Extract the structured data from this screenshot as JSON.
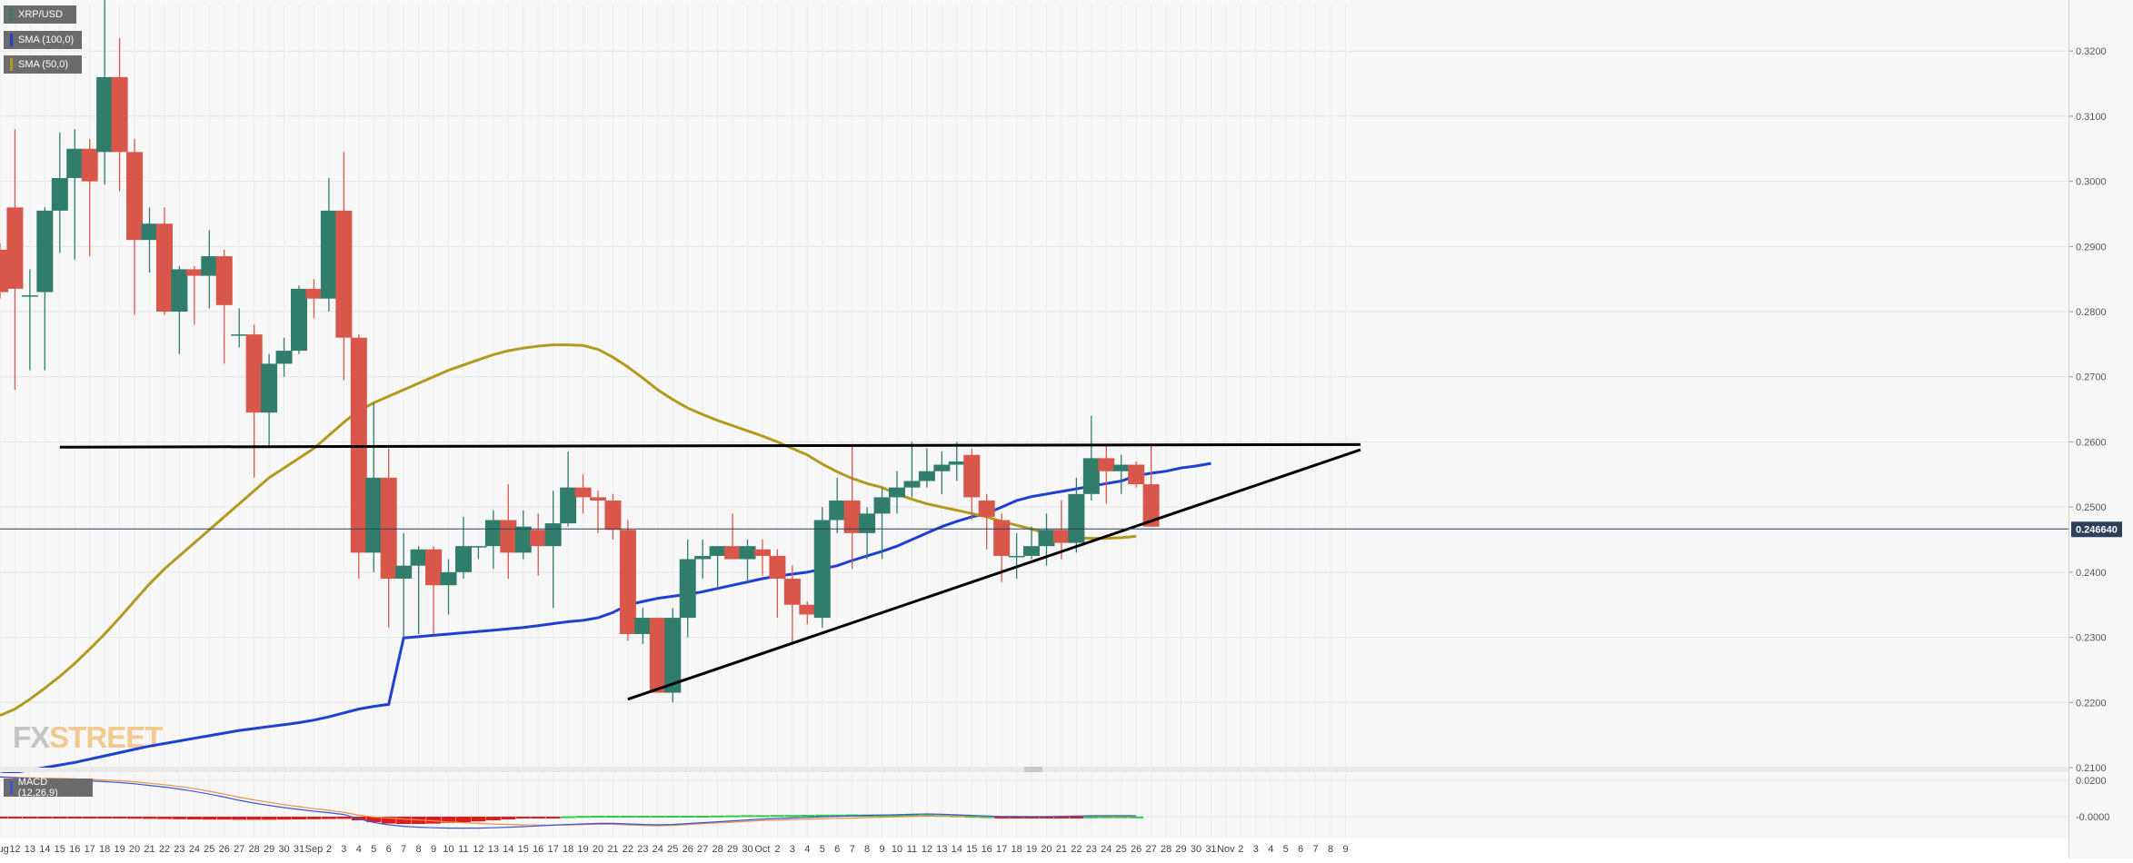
{
  "legend": {
    "symbol": "XRP/USD",
    "sma100": "SMA (100,0)",
    "sma50": "SMA (50,0)",
    "macd": "MACD (12,26,9)"
  },
  "watermark": {
    "fx": "FX",
    "street": "STREET"
  },
  "colors": {
    "bull": "#2f7d6a",
    "bear": "#d9574a",
    "sma100": "#1f3fd1",
    "sma50": "#b19a1e",
    "trendline": "#000000",
    "price_badge": "#2e3f5c",
    "macd_line": "#3a55d6",
    "signal_line": "#e8904a",
    "hist_neg": "#e01b1b",
    "hist_pos": "#2ecc40"
  },
  "chart_data": {
    "type": "candlestick",
    "title": "XRP/USD",
    "current_price": "0.246640",
    "ylim": [
      0.21,
      0.327
    ],
    "y_ticks": [
      "0.3200",
      "0.3100",
      "0.3000",
      "0.2900",
      "0.2800",
      "0.2700",
      "0.2600",
      "0.2500",
      "0.2400",
      "0.2300",
      "0.2200",
      "0.2100"
    ],
    "x_tick_labels": [
      "Aug",
      "12",
      "13",
      "14",
      "15",
      "16",
      "17",
      "18",
      "19",
      "20",
      "21",
      "22",
      "23",
      "24",
      "25",
      "26",
      "27",
      "28",
      "29",
      "30",
      "31",
      "Sep",
      "2",
      "3",
      "4",
      "5",
      "6",
      "7",
      "8",
      "9",
      "10",
      "11",
      "12",
      "13",
      "14",
      "15",
      "16",
      "17",
      "18",
      "19",
      "20",
      "21",
      "22",
      "23",
      "24",
      "25",
      "26",
      "27",
      "28",
      "29",
      "30",
      "Oct",
      "2",
      "3",
      "4",
      "5",
      "6",
      "7",
      "8",
      "9",
      "10",
      "11",
      "12",
      "13",
      "14",
      "15",
      "16",
      "17",
      "18",
      "19",
      "20",
      "21",
      "22",
      "23",
      "24",
      "25",
      "26",
      "27",
      "28",
      "29",
      "30",
      "31",
      "Nov",
      "2",
      "3",
      "4",
      "5",
      "6",
      "7",
      "8",
      "9"
    ],
    "candles_ohlc": [
      [
        0.2895,
        0.2905,
        0.282,
        0.283
      ],
      [
        0.296,
        0.308,
        0.268,
        0.2835
      ],
      [
        0.2825,
        0.2865,
        0.271,
        0.2825
      ],
      [
        0.283,
        0.296,
        0.271,
        0.2955
      ],
      [
        0.2955,
        0.3075,
        0.289,
        0.3005
      ],
      [
        0.3005,
        0.308,
        0.288,
        0.305
      ],
      [
        0.305,
        0.3065,
        0.2885,
        0.3
      ],
      [
        0.3045,
        0.328,
        0.2995,
        0.316
      ],
      [
        0.316,
        0.322,
        0.2985,
        0.3045
      ],
      [
        0.3045,
        0.3065,
        0.2795,
        0.291
      ],
      [
        0.291,
        0.296,
        0.286,
        0.2935
      ],
      [
        0.2935,
        0.296,
        0.2795,
        0.28
      ],
      [
        0.28,
        0.287,
        0.2735,
        0.2865
      ],
      [
        0.2865,
        0.287,
        0.278,
        0.2855
      ],
      [
        0.2855,
        0.2925,
        0.2805,
        0.2885
      ],
      [
        0.2885,
        0.2895,
        0.272,
        0.281
      ],
      [
        0.2765,
        0.2805,
        0.2745,
        0.2765
      ],
      [
        0.2765,
        0.278,
        0.2545,
        0.2645
      ],
      [
        0.2645,
        0.2735,
        0.2595,
        0.272
      ],
      [
        0.272,
        0.276,
        0.27,
        0.274
      ],
      [
        0.274,
        0.284,
        0.2735,
        0.2835
      ],
      [
        0.2835,
        0.285,
        0.279,
        0.282
      ],
      [
        0.282,
        0.3005,
        0.28,
        0.2955
      ],
      [
        0.2955,
        0.3045,
        0.2695,
        0.276
      ],
      [
        0.276,
        0.2765,
        0.239,
        0.243
      ],
      [
        0.243,
        0.266,
        0.24,
        0.2545
      ],
      [
        0.2545,
        0.259,
        0.2315,
        0.239
      ],
      [
        0.239,
        0.246,
        0.23,
        0.241
      ],
      [
        0.241,
        0.244,
        0.2305,
        0.2435
      ],
      [
        0.2435,
        0.244,
        0.2305,
        0.238
      ],
      [
        0.238,
        0.242,
        0.2335,
        0.24
      ],
      [
        0.24,
        0.2485,
        0.239,
        0.244
      ],
      [
        0.244,
        0.244,
        0.242,
        0.244
      ],
      [
        0.244,
        0.2495,
        0.2405,
        0.248
      ],
      [
        0.248,
        0.2535,
        0.239,
        0.243
      ],
      [
        0.243,
        0.2495,
        0.242,
        0.247
      ],
      [
        0.2465,
        0.249,
        0.2395,
        0.244
      ],
      [
        0.244,
        0.2525,
        0.2345,
        0.2475
      ],
      [
        0.2475,
        0.2585,
        0.247,
        0.253
      ],
      [
        0.253,
        0.255,
        0.249,
        0.2515
      ],
      [
        0.2515,
        0.2525,
        0.246,
        0.251
      ],
      [
        0.251,
        0.252,
        0.245,
        0.2465
      ],
      [
        0.2465,
        0.248,
        0.2295,
        0.2305
      ],
      [
        0.2305,
        0.2345,
        0.229,
        0.233
      ],
      [
        0.233,
        0.233,
        0.2215,
        0.2215
      ],
      [
        0.2215,
        0.2345,
        0.22,
        0.233
      ],
      [
        0.233,
        0.245,
        0.23,
        0.242
      ],
      [
        0.242,
        0.245,
        0.239,
        0.2425
      ],
      [
        0.2425,
        0.244,
        0.2375,
        0.244
      ],
      [
        0.244,
        0.249,
        0.242,
        0.242
      ],
      [
        0.242,
        0.245,
        0.2385,
        0.244
      ],
      [
        0.2435,
        0.245,
        0.2395,
        0.2425
      ],
      [
        0.2425,
        0.2435,
        0.233,
        0.239
      ],
      [
        0.239,
        0.241,
        0.229,
        0.235
      ],
      [
        0.235,
        0.2355,
        0.232,
        0.2335
      ],
      [
        0.233,
        0.25,
        0.2315,
        0.248
      ],
      [
        0.248,
        0.2545,
        0.246,
        0.251
      ],
      [
        0.251,
        0.2595,
        0.2405,
        0.246
      ],
      [
        0.246,
        0.25,
        0.242,
        0.249
      ],
      [
        0.249,
        0.253,
        0.242,
        0.2515
      ],
      [
        0.2515,
        0.2555,
        0.249,
        0.253
      ],
      [
        0.253,
        0.26,
        0.2515,
        0.254
      ],
      [
        0.254,
        0.259,
        0.253,
        0.2555
      ],
      [
        0.2555,
        0.2585,
        0.252,
        0.2565
      ],
      [
        0.2565,
        0.26,
        0.254,
        0.257
      ],
      [
        0.258,
        0.259,
        0.248,
        0.2515
      ],
      [
        0.251,
        0.252,
        0.2435,
        0.2485
      ],
      [
        0.248,
        0.249,
        0.2385,
        0.2425
      ],
      [
        0.2425,
        0.246,
        0.239,
        0.2425
      ],
      [
        0.2425,
        0.247,
        0.242,
        0.244
      ],
      [
        0.244,
        0.249,
        0.241,
        0.2465
      ],
      [
        0.2465,
        0.251,
        0.242,
        0.2445
      ],
      [
        0.2445,
        0.2545,
        0.243,
        0.252
      ],
      [
        0.252,
        0.264,
        0.251,
        0.2575
      ],
      [
        0.2575,
        0.2595,
        0.2505,
        0.2555
      ],
      [
        0.2555,
        0.258,
        0.252,
        0.2565
      ],
      [
        0.2565,
        0.257,
        0.253,
        0.2535
      ],
      [
        0.2535,
        0.2595,
        0.247,
        0.247
      ]
    ],
    "sma100": [
      0.209,
      0.2093,
      0.2096,
      0.21,
      0.2104,
      0.2108,
      0.2113,
      0.2118,
      0.2123,
      0.2128,
      0.2133,
      0.2137,
      0.2141,
      0.2145,
      0.2149,
      0.2153,
      0.2157,
      0.216,
      0.2163,
      0.2166,
      0.2169,
      0.2173,
      0.2178,
      0.2184,
      0.219,
      0.2194,
      0.2197,
      0.2299,
      0.2301,
      0.2303,
      0.2305,
      0.2307,
      0.2309,
      0.2311,
      0.2313,
      0.2315,
      0.2318,
      0.2321,
      0.2324,
      0.2326,
      0.233,
      0.2338,
      0.235,
      0.2355,
      0.236,
      0.2363,
      0.2366,
      0.237,
      0.2375,
      0.238,
      0.2385,
      0.239,
      0.2394,
      0.2397,
      0.24,
      0.2405,
      0.241,
      0.2418,
      0.2425,
      0.2432,
      0.244,
      0.245,
      0.246,
      0.247,
      0.2478,
      0.2485,
      0.249,
      0.25,
      0.251,
      0.2516,
      0.252,
      0.2524,
      0.2528,
      0.2532,
      0.2536,
      0.254,
      0.2548,
      0.2552,
      0.2555,
      0.256,
      0.2563,
      0.2567
    ],
    "sma50": [
      0.218,
      0.219,
      0.2205,
      0.2222,
      0.224,
      0.226,
      0.2282,
      0.2305,
      0.233,
      0.2356,
      0.2382,
      0.2405,
      0.2425,
      0.2445,
      0.2465,
      0.2485,
      0.2505,
      0.2525,
      0.2545,
      0.256,
      0.2575,
      0.259,
      0.261,
      0.263,
      0.2648,
      0.266,
      0.267,
      0.268,
      0.269,
      0.27,
      0.271,
      0.2718,
      0.2726,
      0.2734,
      0.274,
      0.2744,
      0.2747,
      0.2749,
      0.2749,
      0.2748,
      0.2742,
      0.273,
      0.2715,
      0.2698,
      0.268,
      0.2665,
      0.2652,
      0.2642,
      0.2633,
      0.2625,
      0.2617,
      0.2609,
      0.26,
      0.259,
      0.258,
      0.2566,
      0.2554,
      0.2544,
      0.2536,
      0.253,
      0.252,
      0.2512,
      0.2505,
      0.25,
      0.2495,
      0.249,
      0.2485,
      0.2478,
      0.2472,
      0.2466,
      0.246,
      0.2456,
      0.2453,
      0.2452,
      0.2452,
      0.2453,
      0.2455
    ],
    "trendlines": [
      {
        "from": [
          4,
          0.2592
        ],
        "to": [
          91,
          0.2596
        ]
      },
      {
        "from": [
          42,
          0.2205
        ],
        "to": [
          91,
          0.2588
        ]
      }
    ],
    "macd": {
      "label": "MACD (12,26,9)",
      "y_ticks": [
        "0.0200",
        "-0.0000"
      ],
      "ylim": [
        -0.012,
        0.024
      ],
      "histogram": [
        -0.0002,
        -0.0003,
        -0.0004,
        -0.0005,
        -0.0006,
        -0.0007,
        -0.0008,
        -0.0009,
        -0.001,
        -0.0011,
        -0.0012,
        -0.0013,
        -0.0014,
        -0.0015,
        -0.0016,
        -0.0016,
        -0.0017,
        -0.0017,
        -0.0017,
        -0.0016,
        -0.0015,
        -0.0014,
        -0.0013,
        -0.0012,
        -0.002,
        -0.003,
        -0.0038,
        -0.004,
        -0.004,
        -0.0038,
        -0.0034,
        -0.003,
        -0.0026,
        -0.002,
        -0.0015,
        -0.001,
        -0.0005,
        -0.0001,
        0.0002,
        0.0004,
        0.0005,
        0.0005,
        0.0005,
        0.0005,
        0.0005,
        0.0005,
        0.0005,
        0.0005,
        0.0006,
        0.0007,
        0.0008,
        0.0008,
        0.0009,
        0.0009,
        0.001,
        0.0011,
        0.0011,
        0.0012,
        0.0012,
        0.0012,
        0.0012,
        0.0012,
        0.0011,
        0.0009,
        0.0007,
        0.0004,
        0.0002,
        -0.0001,
        -0.0002,
        -0.0003,
        -0.0003,
        -0.0002,
        -0.0001,
        0.0001,
        0.0002,
        0.0002,
        0.0001
      ],
      "macd_line": [
        0.0218,
        0.0214,
        0.021,
        0.0207,
        0.0204,
        0.0201,
        0.0197,
        0.0193,
        0.0188,
        0.0181,
        0.0172,
        0.0163,
        0.0152,
        0.0139,
        0.0124,
        0.0108,
        0.009,
        0.0075,
        0.0062,
        0.005,
        0.004,
        0.003,
        0.0022,
        0.0012,
        -0.0012,
        -0.0032,
        -0.0045,
        -0.0053,
        -0.0058,
        -0.0061,
        -0.0063,
        -0.0063,
        -0.0063,
        -0.0061,
        -0.0058,
        -0.0055,
        -0.0051,
        -0.0047,
        -0.0043,
        -0.004,
        -0.0037,
        -0.0037,
        -0.004,
        -0.0043,
        -0.0045,
        -0.0043,
        -0.0038,
        -0.0033,
        -0.0028,
        -0.0023,
        -0.0018,
        -0.0013,
        -0.001,
        -0.0007,
        -0.0004,
        -0.0001,
        0.0002,
        0.0004,
        0.0007,
        0.0009,
        0.0011,
        0.0013,
        0.0015,
        0.0013,
        0.001,
        0.0007,
        0.0004,
        0.0001,
        0.0,
        -0.0001,
        -0.0001,
        0.0001,
        0.0003,
        0.0005,
        0.0006,
        0.0006,
        0.0005
      ],
      "signal_line": [
        0.022,
        0.0217,
        0.0214,
        0.0212,
        0.021,
        0.0208,
        0.0205,
        0.0202,
        0.0198,
        0.0192,
        0.0184,
        0.0176,
        0.0166,
        0.0154,
        0.014,
        0.0124,
        0.0107,
        0.0092,
        0.0079,
        0.0066,
        0.0055,
        0.0044,
        0.0035,
        0.0024,
        0.0008,
        -0.0002,
        -0.0007,
        -0.0013,
        -0.0018,
        -0.0023,
        -0.0029,
        -0.0033,
        -0.0037,
        -0.0041,
        -0.0043,
        -0.0045,
        -0.0046,
        -0.0046,
        -0.0045,
        -0.0044,
        -0.0042,
        -0.0042,
        -0.0045,
        -0.0048,
        -0.005,
        -0.0048,
        -0.0043,
        -0.0038,
        -0.0034,
        -0.003,
        -0.0026,
        -0.0021,
        -0.0019,
        -0.0016,
        -0.0014,
        -0.0012,
        -0.0009,
        -0.0008,
        -0.0005,
        -0.0003,
        -0.0001,
        0.0001,
        0.0004,
        0.0004,
        0.0003,
        0.0003,
        0.0002,
        0.0002,
        0.0002,
        0.0002,
        0.0002,
        0.0003,
        0.0004,
        0.0004,
        0.0004,
        0.0004,
        0.0004
      ]
    }
  }
}
